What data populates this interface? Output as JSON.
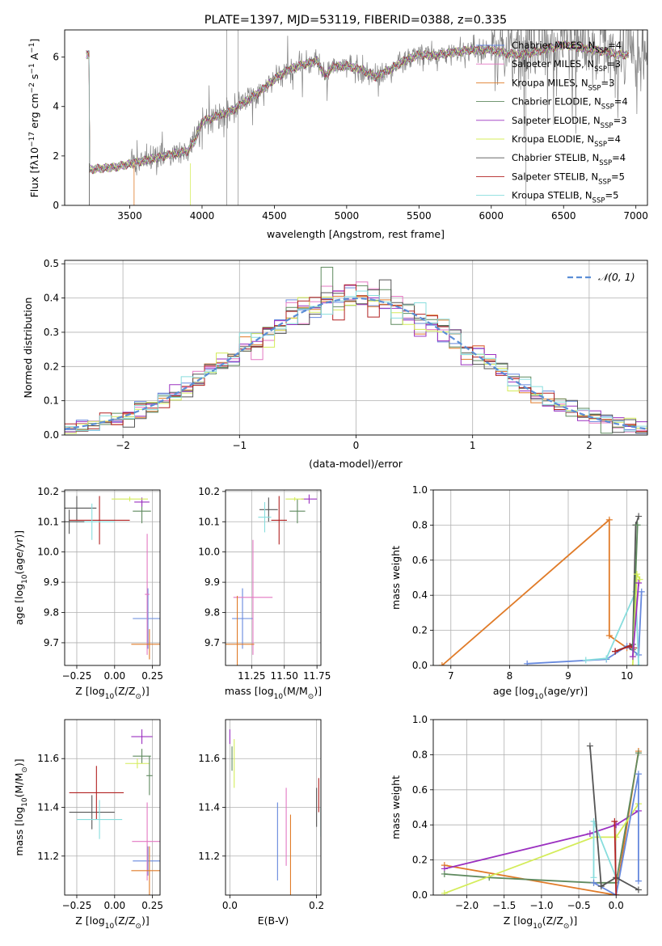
{
  "colors": {
    "chabrier_miles": "#6688dd",
    "salpeter_miles": "#e377c2",
    "kroupa_miles": "#e07b28",
    "chabrier_elodie": "#5f8a5f",
    "salpeter_elodie": "#9b30c0",
    "kroupa_elodie": "#d4ec5a",
    "chabrier_stelib": "#555555",
    "salpeter_stelib": "#b22222",
    "kroupa_stelib": "#88dddd",
    "normal": "#5b8ed6"
  },
  "chart_data": [
    {
      "id": "spectrum",
      "type": "line",
      "title": "PLATE=1397, MJD=53119, FIBERID=0388, z=0.335",
      "xlabel": "wavelength [Angstrom, rest frame]",
      "ylabel_parts": [
        "Flux [f",
        "λ",
        "10",
        "−17",
        " erg cm",
        "−2",
        " s",
        "−1",
        " A",
        "−1",
        "]"
      ],
      "xlim": [
        3050,
        7080
      ],
      "ylim": [
        0,
        7.1
      ],
      "xticks": [
        3500,
        4000,
        4500,
        5000,
        5500,
        6000,
        6500,
        7000
      ],
      "yticks": [
        0,
        2,
        4,
        6
      ],
      "legend": "top-right",
      "continuum": [
        [
          3220,
          1.45
        ],
        [
          3400,
          1.55
        ],
        [
          3520,
          1.7
        ],
        [
          3700,
          1.95
        ],
        [
          3900,
          2.2
        ],
        [
          3950,
          2.6
        ],
        [
          4000,
          3.4
        ],
        [
          4100,
          3.6
        ],
        [
          4200,
          3.8
        ],
        [
          4300,
          4.2
        ],
        [
          4400,
          4.6
        ],
        [
          4500,
          5.1
        ],
        [
          4600,
          5.5
        ],
        [
          4700,
          5.7
        ],
        [
          4800,
          5.85
        ],
        [
          4850,
          5.2
        ],
        [
          4900,
          5.6
        ],
        [
          5000,
          5.65
        ],
        [
          5100,
          5.5
        ],
        [
          5200,
          5.2
        ],
        [
          5300,
          5.5
        ],
        [
          5400,
          5.85
        ],
        [
          5500,
          6.1
        ],
        [
          5600,
          6.05
        ],
        [
          5700,
          6.15
        ],
        [
          5800,
          6.25
        ],
        [
          5900,
          6.3
        ],
        [
          6000,
          6.3
        ],
        [
          6100,
          6.15
        ],
        [
          6200,
          6.1
        ],
        [
          6300,
          6.2
        ],
        [
          6400,
          6.35
        ],
        [
          6500,
          6.5
        ],
        [
          6600,
          6.4
        ],
        [
          6700,
          6.3
        ],
        [
          6800,
          6.2
        ],
        [
          6880,
          6.1
        ]
      ],
      "data_range": [
        3200,
        7080
      ]
    },
    {
      "id": "residuals",
      "type": "step",
      "xlabel": "(data-model)/error",
      "ylabel": "Normed distribution",
      "xlim": [
        -2.5,
        2.5
      ],
      "ylim": [
        0,
        0.51
      ],
      "xticks": [
        -2,
        -1,
        0,
        1,
        2
      ],
      "yticks": [
        0.0,
        0.1,
        0.2,
        0.3,
        0.4,
        0.5
      ],
      "legend": "top-right",
      "normal_label": "𝒩(0, 1)",
      "bin_width": 0.1
    },
    {
      "id": "age_vs_Z",
      "type": "errorbar",
      "xlabel_parts": [
        "Z [log",
        "10",
        "(Z/Z",
        "⊙",
        ")]"
      ],
      "ylabel_parts": [
        "age  [log",
        "10",
        "(age/yr)]"
      ],
      "xlim": [
        -0.33,
        0.3
      ],
      "ylim": [
        9.625,
        10.205
      ],
      "xticks": [
        -0.25,
        0.0,
        0.25
      ],
      "yticks": [
        9.7,
        9.8,
        9.9,
        10.0,
        10.1,
        10.2
      ],
      "points": [
        {
          "k": "chabrier_miles",
          "x": 0.22,
          "xe": 0.1,
          "y": 9.78,
          "ye": 0.1
        },
        {
          "k": "salpeter_miles",
          "x": 0.215,
          "xe": 0.015,
          "y": 9.86,
          "ye": 0.2
        },
        {
          "k": "kroupa_miles",
          "x": 0.23,
          "xe": 0.12,
          "y": 9.695,
          "ye": 0.05
        },
        {
          "k": "chabrier_elodie",
          "x": 0.18,
          "xe": 0.06,
          "y": 10.135,
          "ye": 0.04
        },
        {
          "k": "salpeter_elodie",
          "x": 0.18,
          "xe": 0.05,
          "y": 10.165,
          "ye": 0.015
        },
        {
          "k": "kroupa_elodie",
          "x": 0.1,
          "xe": 0.12,
          "y": 10.175,
          "ye": 0.008
        },
        {
          "k": "chabrier_stelib",
          "x": -0.25,
          "xe": 0.13,
          "y": 10.145,
          "ye": 0.04
        },
        {
          "k": "salpeter_stelib",
          "x": -0.1,
          "xe": 0.2,
          "y": 10.105,
          "ye": 0.08
        },
        {
          "k": "kroupa_stelib",
          "x": -0.15,
          "xe": 0.15,
          "y": 10.1,
          "ye": 0.06
        },
        {
          "k": "chabrier_stelib",
          "x": -0.3,
          "xe": 0.1,
          "y": 10.1,
          "ye": 0.04
        }
      ]
    },
    {
      "id": "age_vs_mass",
      "type": "errorbar",
      "xlabel_parts": [
        "mass [log",
        "10",
        "(M/M",
        "⊙",
        ")]"
      ],
      "xlim": [
        11.05,
        11.78
      ],
      "ylim": [
        9.625,
        10.205
      ],
      "xticks": [
        11.25,
        11.5,
        11.75
      ],
      "yticks": [
        9.7,
        9.8,
        9.9,
        10.0,
        10.1,
        10.2
      ],
      "points": [
        {
          "k": "chabrier_miles",
          "x": 11.18,
          "xe": 0.08,
          "y": 9.78,
          "ye": 0.1
        },
        {
          "k": "salpeter_miles",
          "x": 11.26,
          "xe": 0.15,
          "y": 9.85,
          "ye": 0.19
        },
        {
          "k": "kroupa_miles",
          "x": 11.14,
          "xe": 0.13,
          "y": 9.695,
          "ye": 0.16
        },
        {
          "k": "chabrier_elodie",
          "x": 11.6,
          "xe": 0.06,
          "y": 10.135,
          "ye": 0.04
        },
        {
          "k": "salpeter_elodie",
          "x": 11.69,
          "xe": 0.06,
          "y": 10.175,
          "ye": 0.015
        },
        {
          "k": "kroupa_elodie",
          "x": 11.58,
          "xe": 0.07,
          "y": 10.175,
          "ye": 0.006
        },
        {
          "k": "chabrier_stelib",
          "x": 11.38,
          "xe": 0.07,
          "y": 10.14,
          "ye": 0.04
        },
        {
          "k": "salpeter_stelib",
          "x": 11.46,
          "xe": 0.06,
          "y": 10.105,
          "ye": 0.08
        },
        {
          "k": "kroupa_stelib",
          "x": 11.35,
          "xe": 0.05,
          "y": 10.115,
          "ye": 0.05
        }
      ]
    },
    {
      "id": "mw_vs_age",
      "type": "line",
      "xlabel_parts": [
        "age  [log",
        "10",
        "(age/yr)]"
      ],
      "ylabel": "mass weight",
      "xlim": [
        6.7,
        10.35
      ],
      "ylim": [
        0,
        1.0
      ],
      "xticks": [
        7,
        8,
        9,
        10
      ],
      "yticks": [
        0.0,
        0.2,
        0.4,
        0.6,
        0.8,
        1.0
      ],
      "series": [
        {
          "k": "kroupa_miles",
          "pts": [
            [
              6.85,
              0.0
            ],
            [
              9.7,
              0.83
            ],
            [
              9.7,
              0.17
            ],
            [
              10.0,
              0.1
            ]
          ]
        },
        {
          "k": "chabrier_miles",
          "pts": [
            [
              8.3,
              0.01
            ],
            [
              9.65,
              0.035
            ],
            [
              10.0,
              0.11
            ],
            [
              10.2,
              0.06
            ],
            [
              10.25,
              0.42
            ]
          ]
        },
        {
          "k": "kroupa_stelib",
          "pts": [
            [
              9.3,
              0.03
            ],
            [
              9.65,
              0.04
            ],
            [
              10.15,
              0.42
            ],
            [
              10.2,
              0.0
            ]
          ]
        },
        {
          "k": "chabrier_stelib",
          "pts": [
            [
              9.8,
              0.08
            ],
            [
              10.1,
              0.12
            ],
            [
              10.15,
              0.8
            ],
            [
              10.2,
              0.85
            ]
          ]
        },
        {
          "k": "salpeter_stelib",
          "pts": [
            [
              9.8,
              0.08
            ],
            [
              10.05,
              0.11
            ],
            [
              10.12,
              0.1
            ]
          ]
        },
        {
          "k": "chabrier_elodie",
          "pts": [
            [
              10.1,
              0.09
            ],
            [
              10.18,
              0.8
            ]
          ]
        },
        {
          "k": "kroupa_elodie",
          "pts": [
            [
              10.1,
              0.0
            ],
            [
              10.17,
              0.52
            ],
            [
              10.22,
              0.49
            ]
          ]
        },
        {
          "k": "salpeter_elodie",
          "pts": [
            [
              10.1,
              0.05
            ],
            [
              10.2,
              0.47
            ]
          ]
        }
      ]
    },
    {
      "id": "mass_vs_Z",
      "type": "errorbar",
      "xlabel_parts": [
        "Z [log",
        "10",
        "(Z/Z",
        "⊙",
        ")]"
      ],
      "ylabel_parts": [
        "mass [log",
        "10",
        "(M/M",
        "⊙",
        ")]"
      ],
      "xlim": [
        -0.33,
        0.3
      ],
      "ylim": [
        11.04,
        11.76
      ],
      "xticks": [
        -0.25,
        0.0,
        0.25
      ],
      "yticks": [
        11.2,
        11.4,
        11.6
      ],
      "points": [
        {
          "k": "chabrier_miles",
          "x": 0.22,
          "xe": 0.1,
          "y": 11.18,
          "ye": 0.06
        },
        {
          "k": "salpeter_miles",
          "x": 0.215,
          "xe": 0.1,
          "y": 11.26,
          "ye": 0.16
        },
        {
          "k": "kroupa_miles",
          "x": 0.23,
          "xe": 0.12,
          "y": 11.14,
          "ye": 0.1
        },
        {
          "k": "chabrier_elodie",
          "x": 0.18,
          "xe": 0.06,
          "y": 11.61,
          "ye": 0.03
        },
        {
          "k": "salpeter_elodie",
          "x": 0.18,
          "xe": 0.07,
          "y": 11.69,
          "ye": 0.03
        },
        {
          "k": "kroupa_elodie",
          "x": 0.15,
          "xe": 0.08,
          "y": 11.58,
          "ye": 0.02
        },
        {
          "k": "chabrier_stelib",
          "x": -0.15,
          "xe": 0.15,
          "y": 11.38,
          "ye": 0.07
        },
        {
          "k": "salpeter_stelib",
          "x": -0.12,
          "xe": 0.18,
          "y": 11.46,
          "ye": 0.11
        },
        {
          "k": "kroupa_stelib",
          "x": -0.1,
          "xe": 0.15,
          "y": 11.35,
          "ye": 0.08
        },
        {
          "k": "chabrier_elodie",
          "x": 0.23,
          "xe": 0.02,
          "y": 11.53,
          "ye": 0.08
        }
      ]
    },
    {
      "id": "mass_vs_ebv",
      "type": "errorbar",
      "xlabel": "E(B-V)",
      "xlim": [
        -0.01,
        0.21
      ],
      "ylim": [
        11.04,
        11.76
      ],
      "xticks": [
        0.0,
        0.2
      ],
      "yticks": [
        11.2,
        11.4,
        11.6
      ],
      "points": [
        {
          "k": "salpeter_elodie",
          "x": 0.0,
          "y": 11.69,
          "ye": 0.03
        },
        {
          "k": "kroupa_elodie",
          "x": 0.01,
          "y": 11.58,
          "ye": 0.1
        },
        {
          "k": "chabrier_elodie",
          "x": 0.005,
          "y": 11.6,
          "ye": 0.05
        },
        {
          "k": "chabrier_miles",
          "x": 0.11,
          "y": 11.26,
          "ye": 0.16
        },
        {
          "k": "salpeter_miles",
          "x": 0.13,
          "y": 11.32,
          "ye": 0.16
        },
        {
          "k": "kroupa_miles",
          "x": 0.14,
          "y": 11.2,
          "ye": 0.17
        },
        {
          "k": "chabrier_stelib",
          "x": 0.2,
          "y": 11.4,
          "ye": 0.08
        },
        {
          "k": "salpeter_stelib",
          "x": 0.205,
          "y": 11.45,
          "ye": 0.07
        },
        {
          "k": "kroupa_stelib",
          "x": 0.21,
          "y": 11.34,
          "ye": 0.06
        }
      ]
    },
    {
      "id": "mw_vs_Z",
      "type": "line",
      "xlabel_parts": [
        "Z [log",
        "10",
        "(Z/Z",
        "⊙",
        ")]"
      ],
      "ylabel": "mass weight",
      "xlim": [
        -2.45,
        0.42
      ],
      "ylim": [
        0,
        1.0
      ],
      "xticks": [
        -2.0,
        -1.5,
        -1.0,
        -0.5,
        0.0
      ],
      "yticks": [
        0.0,
        0.2,
        0.4,
        0.6,
        0.8,
        1.0
      ],
      "series": [
        {
          "k": "kroupa_miles",
          "pts": [
            [
              -2.3,
              0.17
            ],
            [
              0.0,
              0.0
            ],
            [
              0.3,
              0.82
            ]
          ]
        },
        {
          "k": "salpeter_elodie",
          "pts": [
            [
              -2.3,
              0.15
            ],
            [
              -0.35,
              0.35
            ],
            [
              0.0,
              0.4
            ],
            [
              0.3,
              0.48
            ]
          ]
        },
        {
          "k": "chabrier_elodie",
          "pts": [
            [
              -2.3,
              0.12
            ],
            [
              -1.7,
              0.1
            ],
            [
              -0.3,
              0.07
            ],
            [
              0.0,
              0.07
            ],
            [
              0.3,
              0.81
            ]
          ]
        },
        {
          "k": "kroupa_elodie",
          "pts": [
            [
              -2.3,
              0.01
            ],
            [
              -0.3,
              0.33
            ],
            [
              0.0,
              0.33
            ],
            [
              0.3,
              0.52
            ]
          ]
        },
        {
          "k": "kroupa_stelib",
          "pts": [
            [
              -0.3,
              0.1
            ],
            [
              -0.3,
              0.42
            ],
            [
              0.0,
              0.1
            ]
          ]
        },
        {
          "k": "chabrier_miles",
          "pts": [
            [
              -0.3,
              0.07
            ],
            [
              0.0,
              0.0
            ],
            [
              0.3,
              0.69
            ],
            [
              0.3,
              0.08
            ]
          ]
        },
        {
          "k": "chabrier_stelib",
          "pts": [
            [
              -0.35,
              0.85
            ],
            [
              -0.2,
              0.05
            ],
            [
              0.0,
              0.1
            ],
            [
              0.3,
              0.03
            ]
          ]
        },
        {
          "k": "salpeter_stelib",
          "pts": [
            [
              -0.02,
              0.42
            ],
            [
              0.0,
              0.0
            ]
          ]
        }
      ]
    }
  ],
  "legend_entries": [
    {
      "k": "chabrier_miles",
      "label": "Chabrier MILES, N",
      "sub": "SSP",
      "suffix": "=4"
    },
    {
      "k": "salpeter_miles",
      "label": "Salpeter MILES, N",
      "sub": "SSP",
      "suffix": "=3"
    },
    {
      "k": "kroupa_miles",
      "label": "Kroupa MILES, N",
      "sub": "SSP",
      "suffix": "=3"
    },
    {
      "k": "chabrier_elodie",
      "label": "Chabrier ELODIE, N",
      "sub": "SSP",
      "suffix": "=4"
    },
    {
      "k": "salpeter_elodie",
      "label": "Salpeter ELODIE, N",
      "sub": "SSP",
      "suffix": "=3"
    },
    {
      "k": "kroupa_elodie",
      "label": "Kroupa ELODIE, N",
      "sub": "SSP",
      "suffix": "=4"
    },
    {
      "k": "chabrier_stelib",
      "label": "Chabrier STELIB, N",
      "sub": "SSP",
      "suffix": "=4"
    },
    {
      "k": "salpeter_stelib",
      "label": "Salpeter STELIB, N",
      "sub": "SSP",
      "suffix": "=5"
    },
    {
      "k": "kroupa_stelib",
      "label": "Kroupa STELIB, N",
      "sub": "SSP",
      "suffix": "=5"
    }
  ]
}
